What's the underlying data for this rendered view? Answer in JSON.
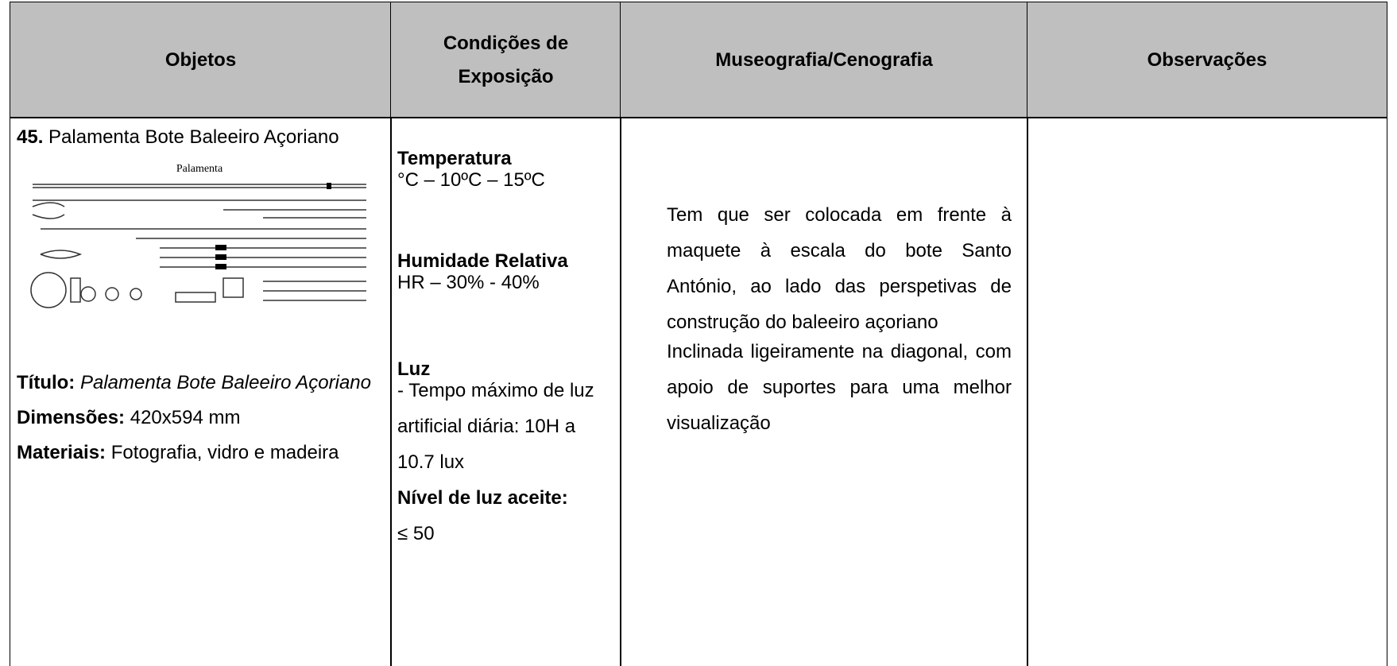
{
  "table": {
    "headers": [
      "Objetos",
      "Condições de Exposição",
      "Museografia/Cenografia",
      "Observações"
    ],
    "object": {
      "number": "45.",
      "name": "Palamenta Bote Baleeiro Açoriano",
      "image_title": "Palamenta",
      "title_label": "Título:",
      "title_value": "Palamenta Bote Baleeiro Açoriano",
      "dimensions_label": "Dimensões:",
      "dimensions_value": "420x594 mm",
      "materials_label": "Materiais:",
      "materials_value": "Fotografia, vidro e madeira"
    },
    "conditions": {
      "temperature_label": "Temperatura",
      "temperature_value": "°C – 10ºC – 15ºC",
      "humidity_label": "Humidade Relativa",
      "humidity_value": "HR – 30% - 40%",
      "light_label": "Luz",
      "light_value": "- Tempo máximo de luz artificial diária: 10H a 10.7 lux",
      "light_level_label": "Nível de luz aceite:",
      "light_level_value": "≤ 50"
    },
    "museography": [
      "Tem que ser colocada em frente à maquete à escala do bote Santo António, ao lado das perspetivas de construção do baleeiro açoriano",
      "Inclinada ligeiramente na diagonal, com apoio de suportes para uma melhor visualização"
    ],
    "observations": null
  }
}
